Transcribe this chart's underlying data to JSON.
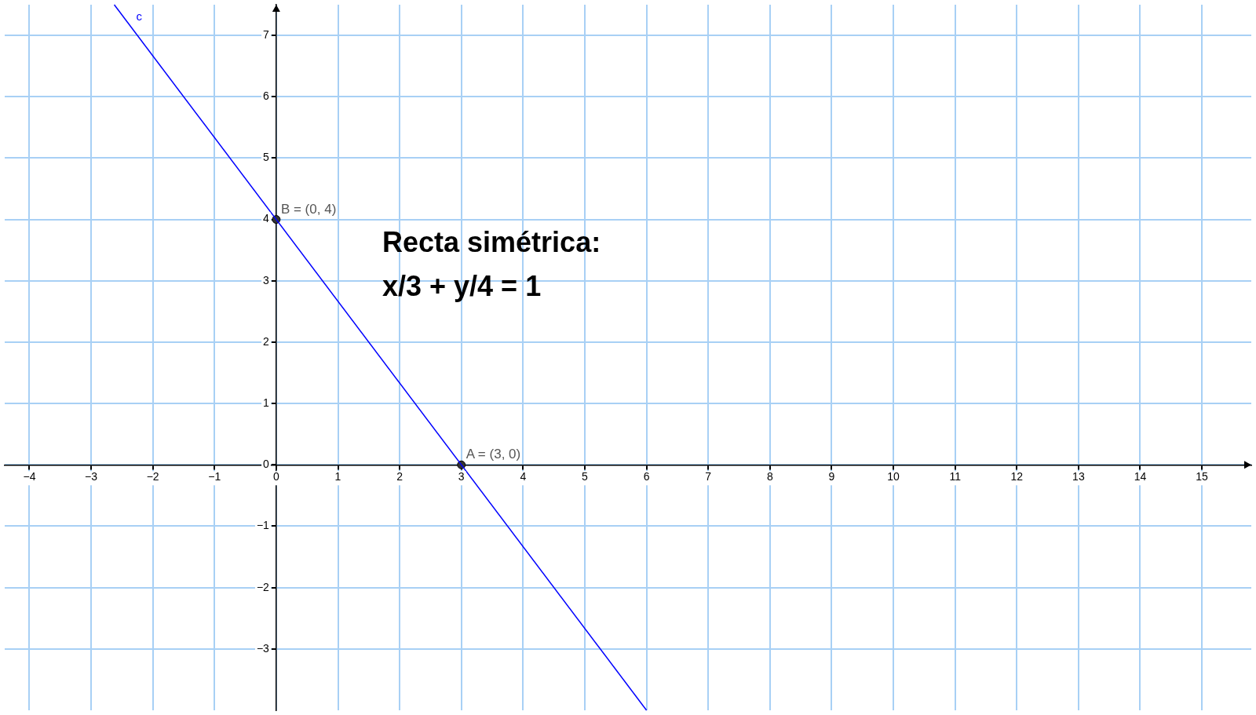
{
  "chart_data": {
    "type": "line",
    "xlim": [
      -4.4,
      15.8
    ],
    "ylim": [
      -4,
      7.5
    ],
    "xticks": [
      -4,
      -3,
      -2,
      -1,
      0,
      1,
      2,
      3,
      4,
      5,
      6,
      7,
      8,
      9,
      10,
      11,
      12,
      13,
      14,
      15
    ],
    "yticks": [
      -3,
      -2,
      -1,
      0,
      1,
      2,
      3,
      4,
      5,
      6,
      7
    ],
    "grid": true,
    "legend": false,
    "series": [
      {
        "name": "c",
        "type": "line",
        "color": "#0000ff",
        "x": [
          -2.625,
          6
        ],
        "values": [
          7.5,
          -4
        ],
        "marker": "none",
        "line_style": "solid"
      },
      {
        "type": "scatter",
        "color": "#333333",
        "x": [
          3,
          0
        ],
        "values": [
          0,
          4
        ],
        "marker": "circle"
      }
    ],
    "annotations": [
      "Recta simétrica:",
      "x/3 + y/4 = 1",
      {
        "text": "A = (3, 0)",
        "x": 3,
        "y": 0
      },
      {
        "text": "B = (0, 4)",
        "x": 0,
        "y": 4
      }
    ]
  }
}
